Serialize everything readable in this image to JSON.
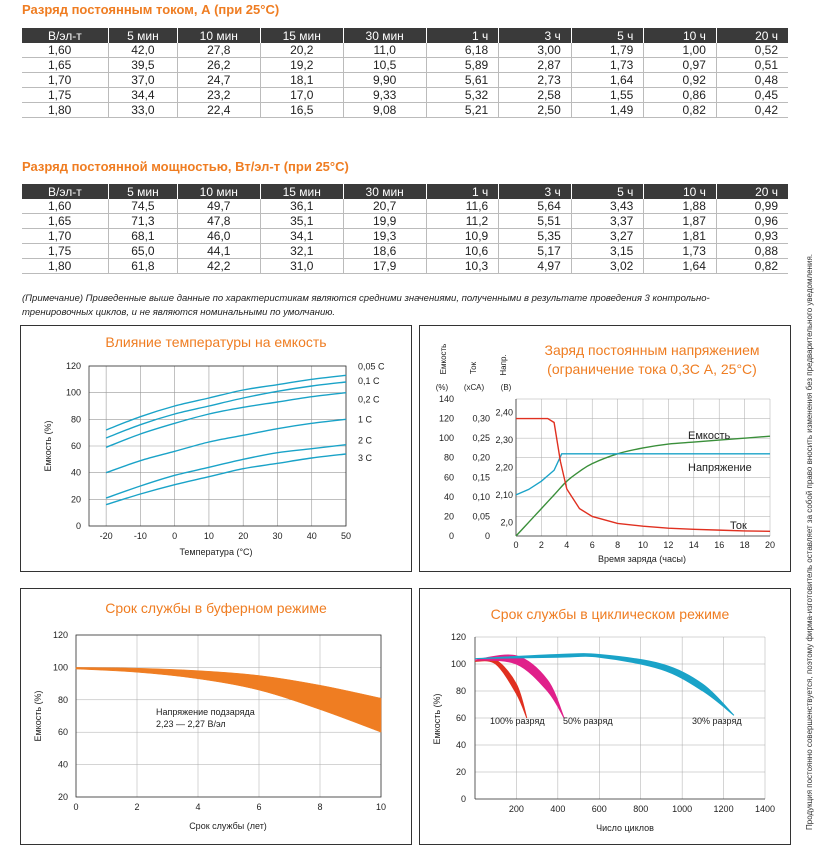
{
  "table1": {
    "title": "Разряд постоянным током, А (при 25°С)",
    "headers": [
      "В/эл-т",
      "5 мин",
      "10 мин",
      "15 мин",
      "30 мин",
      "1 ч",
      "3 ч",
      "5 ч",
      "10 ч",
      "20 ч"
    ],
    "rows": [
      [
        "1,60",
        "42,0",
        "27,8",
        "20,2",
        "11,0",
        "6,18",
        "3,00",
        "1,79",
        "1,00",
        "0,52"
      ],
      [
        "1,65",
        "39,5",
        "26,2",
        "19,2",
        "10,5",
        "5,89",
        "2,87",
        "1,73",
        "0,97",
        "0,51"
      ],
      [
        "1,70",
        "37,0",
        "24,7",
        "18,1",
        "9,90",
        "5,61",
        "2,73",
        "1,64",
        "0,92",
        "0,48"
      ],
      [
        "1,75",
        "34,4",
        "23,2",
        "17,0",
        "9,33",
        "5,32",
        "2,58",
        "1,55",
        "0,86",
        "0,45"
      ],
      [
        "1,80",
        "33,0",
        "22,4",
        "16,5",
        "9,08",
        "5,21",
        "2,50",
        "1,49",
        "0,82",
        "0,42"
      ]
    ]
  },
  "table2": {
    "title": "Разряд постоянной мощностью, Вт/эл-т (при 25°С)",
    "headers": [
      "В/эл-т",
      "5 мин",
      "10 мин",
      "15 мин",
      "30 мин",
      "1 ч",
      "3 ч",
      "5 ч",
      "10 ч",
      "20 ч"
    ],
    "rows": [
      [
        "1,60",
        "74,5",
        "49,7",
        "36,1",
        "20,7",
        "11,6",
        "5,64",
        "3,43",
        "1,88",
        "0,99"
      ],
      [
        "1,65",
        "71,3",
        "47,8",
        "35,1",
        "19,9",
        "11,2",
        "5,51",
        "3,37",
        "1,87",
        "0,96"
      ],
      [
        "1,70",
        "68,1",
        "46,0",
        "34,1",
        "19,3",
        "10,9",
        "5,35",
        "3,27",
        "1,81",
        "0,93"
      ],
      [
        "1,75",
        "65,0",
        "44,1",
        "32,1",
        "18,6",
        "10,6",
        "5,17",
        "3,15",
        "1,73",
        "0,88"
      ],
      [
        "1,80",
        "61,8",
        "42,2",
        "31,0",
        "17,9",
        "10,3",
        "4,97",
        "3,02",
        "1,64",
        "0,82"
      ]
    ]
  },
  "note": {
    "line1": "(Примечание) Приведенные выше данные по характеристикам являются средними значениями, полученными в результате проведения 3 контрольно-",
    "line2": "тренировочных циклов, и не являются номинальными по умолчанию."
  },
  "side_note": "Продукция постоянно совершенствуется, поэтому фирма-изготовитель оставляет за собой право вносить изменения без предварительного уведомления.",
  "colors": {
    "accent": "#ef7d22",
    "curve_blue": "#1aa3c8",
    "curve_green": "#3a8f3a",
    "curve_red": "#e03020",
    "curve_pink": "#e0208a",
    "header_bg": "#3a3a3a"
  },
  "chart_data": [
    {
      "type": "line",
      "title": "Влияние температуры на емкость",
      "xlabel": "Температура (°С)",
      "ylabel": "Емкость (%)",
      "xlim": [
        -25,
        50
      ],
      "ylim": [
        0,
        120
      ],
      "xticks": [
        "-20",
        "-10",
        "0",
        "10",
        "20",
        "30",
        "40",
        "50"
      ],
      "yticks": [
        "0",
        "20",
        "40",
        "60",
        "80",
        "100",
        "120"
      ],
      "x": [
        -20,
        -10,
        0,
        10,
        20,
        30,
        40,
        50
      ],
      "series": [
        {
          "name": "0,05 С",
          "values": [
            72,
            82,
            90,
            96,
            102,
            106,
            110,
            113
          ]
        },
        {
          "name": "0,1 С",
          "values": [
            66,
            76,
            84,
            90,
            96,
            101,
            105,
            108
          ]
        },
        {
          "name": "0,2 С",
          "values": [
            59,
            69,
            77,
            84,
            89,
            93,
            97,
            100
          ]
        },
        {
          "name": "1 С",
          "values": [
            40,
            49,
            56,
            63,
            68,
            73,
            77,
            80
          ]
        },
        {
          "name": "2 С",
          "values": [
            21,
            30,
            38,
            44,
            50,
            55,
            58,
            61
          ]
        },
        {
          "name": "3 С",
          "values": [
            16,
            24,
            31,
            37,
            43,
            47,
            51,
            54
          ]
        }
      ]
    },
    {
      "type": "line",
      "title": "Заряд постоянным напряжением",
      "subtitle": "(ограничение тока 0,3С А, 25°С)",
      "xlabel": "Время заряда (часы)",
      "axis_labels": {
        "capacity": "Емкость",
        "capacity_unit": "(%)",
        "current": "Ток",
        "current_unit": "(хСА)",
        "voltage": "Напр.",
        "voltage_unit": "(В)"
      },
      "xticks": [
        "0",
        "2",
        "4",
        "6",
        "8",
        "10",
        "12",
        "14",
        "16",
        "18",
        "20"
      ],
      "capacity_ticks": [
        "0",
        "20",
        "40",
        "60",
        "80",
        "100",
        "120",
        "140"
      ],
      "current_ticks": [
        "0",
        "0,05",
        "0,10",
        "0,15",
        "0,20",
        "0,25",
        "0,30"
      ],
      "voltage_ticks": [
        "2,0",
        "2,10",
        "2,20",
        "2,30",
        "2,40"
      ],
      "xlim": [
        0,
        20
      ],
      "series": [
        {
          "name": "Емкость",
          "axis": "capacity",
          "x": [
            0,
            1,
            2,
            3,
            4,
            5,
            6,
            8,
            10,
            12,
            14,
            16,
            18,
            20
          ],
          "values": [
            0,
            14,
            28,
            42,
            56,
            66,
            74,
            84,
            90,
            94,
            96,
            98,
            100,
            102
          ]
        },
        {
          "name": "Напряжение",
          "axis": "voltage",
          "x": [
            0,
            1,
            2,
            3,
            3.6,
            4,
            20
          ],
          "values": [
            2.1,
            2.12,
            2.15,
            2.19,
            2.25,
            2.25,
            2.25
          ]
        },
        {
          "name": "Ток",
          "axis": "current",
          "x": [
            0,
            2.5,
            3,
            3.5,
            4,
            5,
            6,
            8,
            10,
            12,
            14,
            16,
            18,
            20
          ],
          "values": [
            0.3,
            0.3,
            0.29,
            0.19,
            0.12,
            0.07,
            0.05,
            0.032,
            0.025,
            0.02,
            0.017,
            0.015,
            0.013,
            0.012
          ]
        }
      ]
    },
    {
      "type": "area",
      "title": "Срок службы в буферном режиме",
      "xlabel": "Срок службы (лет)",
      "ylabel": "Емкость (%)",
      "xlim": [
        0,
        10
      ],
      "ylim": [
        20,
        120
      ],
      "xticks": [
        "0",
        "2",
        "4",
        "6",
        "8",
        "10"
      ],
      "yticks": [
        "20",
        "40",
        "60",
        "80",
        "100",
        "120"
      ],
      "annotation_line1": "Напряжение подзаряда",
      "annotation_line2": "2,23 — 2,27 В/эл",
      "x": [
        0,
        2,
        4,
        6,
        8,
        10
      ],
      "upper": [
        100,
        99.5,
        98,
        95,
        89,
        81
      ],
      "lower": [
        99,
        97,
        93,
        86,
        74,
        60
      ]
    },
    {
      "type": "area",
      "title": "Срок службы в циклическом режиме",
      "xlabel": "Число циклов",
      "ylabel": "Емкость (%)",
      "xlim": [
        0,
        1400
      ],
      "ylim": [
        0,
        120
      ],
      "xticks": [
        "200",
        "400",
        "600",
        "800",
        "1000",
        "1200",
        "1400"
      ],
      "yticks": [
        "0",
        "20",
        "40",
        "60",
        "80",
        "100",
        "120"
      ],
      "series": [
        {
          "name": "100% разряд",
          "x": [
            0,
            100,
            200,
            250
          ],
          "upper": [
            102,
            103,
            85,
            60
          ],
          "lower": [
            102,
            100,
            78,
            60
          ]
        },
        {
          "name": "50% разряд",
          "x": [
            0,
            200,
            350,
            430
          ],
          "upper": [
            103,
            106,
            88,
            60
          ],
          "lower": [
            103,
            100,
            80,
            60
          ]
        },
        {
          "name": "30% разряд",
          "x": [
            0,
            400,
            600,
            900,
            1100,
            1250
          ],
          "upper": [
            104,
            107,
            107,
            100,
            85,
            62
          ],
          "lower": [
            104,
            105,
            105,
            96,
            80,
            62
          ]
        }
      ]
    }
  ]
}
